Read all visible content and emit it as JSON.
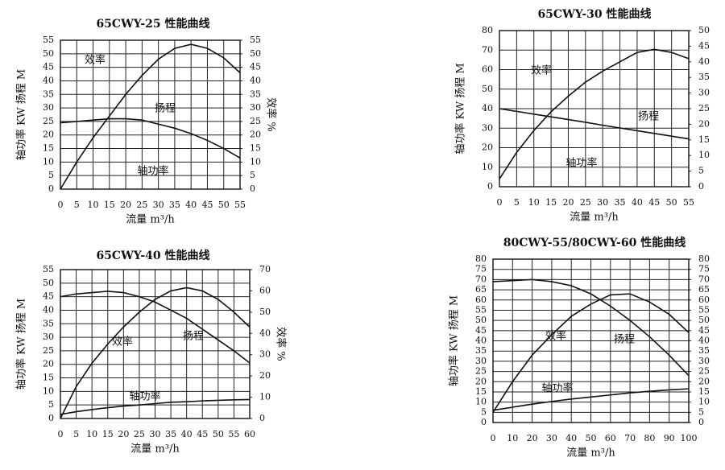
{
  "chart_data": [
    {
      "type": "line",
      "title": "65CWY-25 性能曲线",
      "xlabel": "流量 m³/h",
      "ylabel": "轴功率 KW 扬程 M",
      "y2label": "效率 %",
      "x": [
        0,
        5,
        10,
        15,
        20,
        25,
        30,
        35,
        40,
        45,
        50,
        55
      ],
      "xlim": [
        0,
        55
      ],
      "xticks": [
        0,
        5,
        10,
        15,
        20,
        25,
        30,
        35,
        40,
        45,
        50,
        55
      ],
      "ylim": [
        0,
        55
      ],
      "yticks": [
        0,
        5,
        10,
        15,
        20,
        25,
        30,
        35,
        40,
        45,
        50,
        55
      ],
      "y2lim": [
        0,
        55
      ],
      "y2ticks": [
        0,
        5,
        10,
        15,
        20,
        25,
        30,
        35,
        40,
        45,
        50,
        55
      ],
      "grid": true,
      "series": [
        {
          "name": "扬程",
          "color": "#111111",
          "values": [
            24.5,
            25,
            25.5,
            26,
            26,
            25.5,
            24,
            22.5,
            20.5,
            18,
            15,
            11.5
          ]
        },
        {
          "name": "效率",
          "color": "#111111",
          "axis": "y2",
          "values": [
            0,
            10,
            19,
            27,
            35,
            42,
            48,
            52,
            53.5,
            52,
            48.5,
            43
          ]
        }
      ],
      "annotations": [
        "轴功率"
      ]
    },
    {
      "type": "line",
      "title": "65CWY-30 性能曲线",
      "xlabel": "流量 m³/h",
      "ylabel": "轴功率 KW 扬程 M",
      "x": [
        0,
        5,
        10,
        15,
        20,
        25,
        30,
        35,
        40,
        45,
        50,
        55
      ],
      "xlim": [
        0,
        55
      ],
      "xticks": [
        0,
        5,
        10,
        15,
        20,
        25,
        30,
        35,
        40,
        45,
        50,
        55
      ],
      "ylim": [
        0,
        80
      ],
      "yticks": [
        0,
        10,
        20,
        30,
        40,
        50,
        60,
        70,
        80
      ],
      "y2lim": [
        0,
        50
      ],
      "y2ticks": [
        0,
        5,
        10,
        15,
        20,
        25,
        30,
        35,
        40,
        45,
        50
      ],
      "grid": true,
      "series": [
        {
          "name": "扬程",
          "color": "#111111",
          "values": [
            40,
            38.6,
            37.2,
            35.8,
            34.4,
            33,
            31.5,
            30.1,
            28.7,
            27.3,
            25.9,
            24.5
          ]
        },
        {
          "name": "效率",
          "color": "#111111",
          "axis": "y2",
          "values": [
            2.5,
            11,
            18,
            24,
            29,
            33.5,
            37,
            40,
            43,
            44,
            43,
            41
          ]
        }
      ],
      "annotations": [
        "轴功率"
      ]
    },
    {
      "type": "line",
      "title": "65CWY-40 性能曲线",
      "xlabel": "流量 m³/h",
      "ylabel": "轴功率 KW 扬程 M",
      "y2label": "效率 %",
      "x": [
        0,
        5,
        10,
        15,
        20,
        25,
        30,
        35,
        40,
        45,
        50,
        55,
        60
      ],
      "xlim": [
        0,
        60
      ],
      "xticks": [
        0,
        5,
        10,
        15,
        20,
        25,
        30,
        35,
        40,
        45,
        50,
        55,
        60
      ],
      "ylim": [
        0,
        55
      ],
      "yticks": [
        0,
        5,
        10,
        15,
        20,
        25,
        30,
        35,
        40,
        45,
        50,
        55
      ],
      "y2lim": [
        0,
        70
      ],
      "y2ticks": [
        0,
        10,
        20,
        30,
        40,
        50,
        60,
        70
      ],
      "grid": true,
      "series": [
        {
          "name": "扬程",
          "color": "#111111",
          "values": [
            45,
            46,
            46.5,
            47,
            46.5,
            45,
            43,
            40,
            37,
            33,
            29,
            25,
            20.5
          ]
        },
        {
          "name": "效率",
          "color": "#111111",
          "axis": "y2",
          "values": [
            0,
            15,
            26,
            35,
            43,
            50,
            56,
            60,
            61.5,
            60,
            56,
            50,
            43
          ]
        },
        {
          "name": "轴功率",
          "color": "#111111",
          "values": [
            1.5,
            2.5,
            3.3,
            4,
            4.6,
            5,
            5.5,
            6,
            6.2,
            6.5,
            6.7,
            6.9,
            7
          ]
        }
      ],
      "annotations": []
    },
    {
      "type": "line",
      "title": "80CWY-55/80CWY-60 性能曲线",
      "xlabel": "流量 m³/h",
      "ylabel": "轴功率 KW 扬程 M",
      "x": [
        0,
        10,
        20,
        30,
        40,
        50,
        60,
        70,
        80,
        90,
        100
      ],
      "xlim": [
        0,
        100
      ],
      "xticks": [
        0,
        10,
        20,
        30,
        40,
        50,
        60,
        70,
        80,
        90,
        100
      ],
      "ylim": [
        0,
        80
      ],
      "yticks": [
        0,
        5,
        10,
        15,
        20,
        25,
        30,
        35,
        40,
        45,
        50,
        55,
        60,
        65,
        70,
        75,
        80
      ],
      "y2lim": [
        0,
        80
      ],
      "y2ticks": [
        0,
        5,
        10,
        15,
        20,
        25,
        30,
        35,
        40,
        45,
        50,
        55,
        60,
        65,
        70,
        75,
        80
      ],
      "grid": true,
      "series": [
        {
          "name": "扬程",
          "color": "#111111",
          "values": [
            69,
            69.5,
            70,
            69,
            67,
            63,
            57,
            50,
            42,
            33,
            23
          ]
        },
        {
          "name": "效率",
          "color": "#111111",
          "axis": "y2",
          "values": [
            5,
            20,
            33,
            43,
            52,
            58,
            62.5,
            63,
            59,
            53,
            44
          ]
        },
        {
          "name": "轴功率",
          "color": "#111111",
          "values": [
            6,
            7.5,
            9,
            10.3,
            11.5,
            12.5,
            13.5,
            14.5,
            15.3,
            16,
            16.5
          ]
        }
      ],
      "annotations": []
    }
  ]
}
